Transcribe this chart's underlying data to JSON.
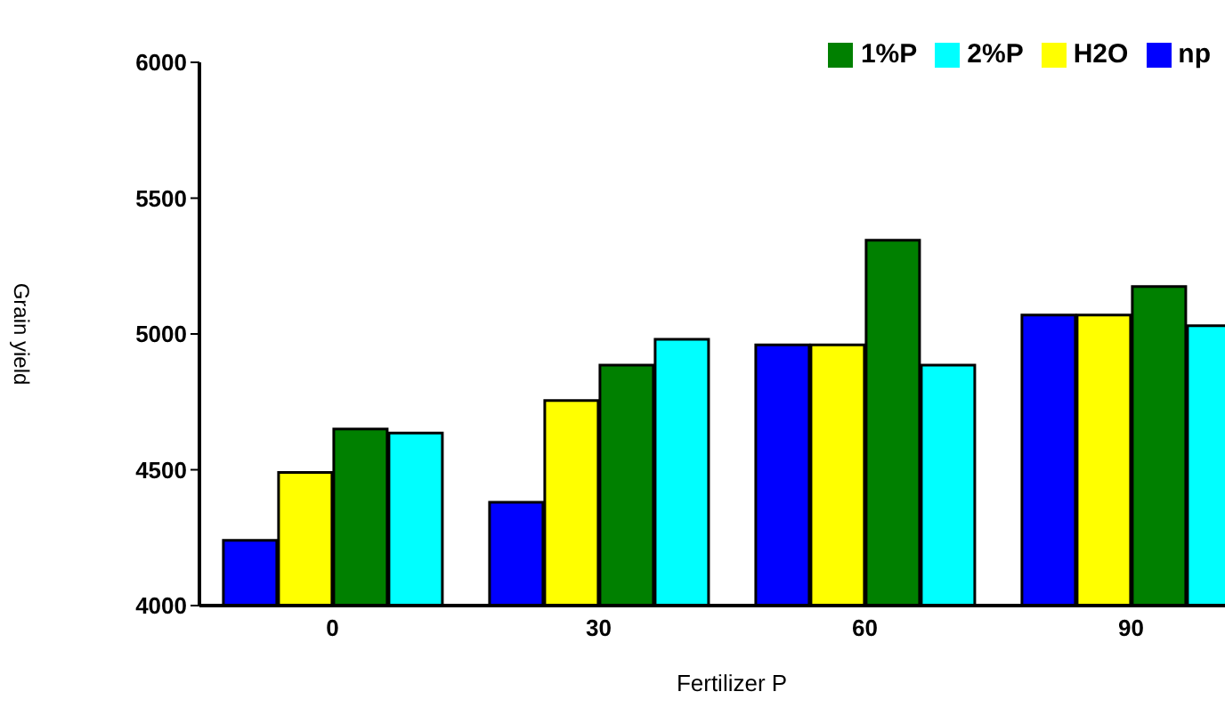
{
  "chart_data": {
    "type": "bar",
    "xlabel": "Fertilizer P",
    "ylabel": "Grain yield",
    "categories": [
      "0",
      "30",
      "60",
      "90"
    ],
    "series": [
      {
        "name": "np",
        "color": "#0000ff",
        "values": [
          4240,
          4380,
          4960,
          5070
        ]
      },
      {
        "name": "H2O",
        "color": "#ffff00",
        "values": [
          4490,
          4755,
          4960,
          5070
        ]
      },
      {
        "name": "1%P",
        "color": "#008000",
        "values": [
          4650,
          4885,
          5345,
          5175
        ]
      },
      {
        "name": "2%P",
        "color": "#00ffff",
        "values": [
          4635,
          4980,
          4885,
          5030
        ]
      }
    ],
    "ylim": [
      4000,
      6000
    ],
    "yticks": [
      4000,
      4500,
      5000,
      5500,
      6000
    ],
    "grid": false,
    "legend": "top right"
  }
}
